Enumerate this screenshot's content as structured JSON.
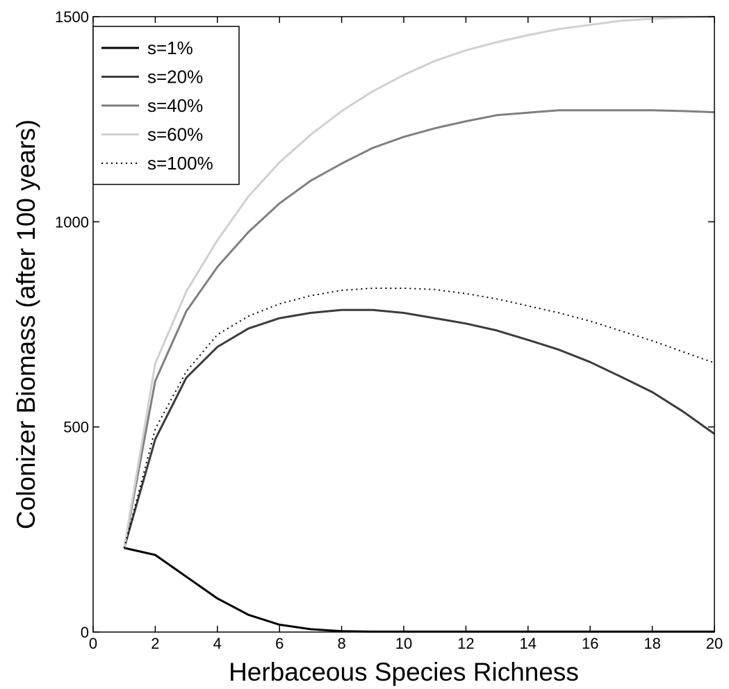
{
  "chart_data": {
    "type": "line",
    "title": "",
    "xlabel": "Herbaceous Species Richness",
    "ylabel": "Colonizer Biomass (after 100 years)",
    "xlim": [
      0,
      20
    ],
    "ylim": [
      0,
      1500
    ],
    "xticks": [
      "0",
      "2",
      "4",
      "6",
      "8",
      "10",
      "12",
      "14",
      "16",
      "18",
      "20"
    ],
    "yticks": [
      "0",
      "500",
      "1000",
      "1500"
    ],
    "grid": false,
    "legend_position": "top-left",
    "x": [
      1,
      2,
      3,
      4,
      5,
      6,
      7,
      8,
      9,
      10,
      11,
      12,
      13,
      14,
      15,
      16,
      17,
      18,
      19,
      20
    ],
    "series": [
      {
        "name": "s=1%",
        "color": "#000000",
        "dash": "solid",
        "values": [
          205,
          188,
          135,
          82,
          42,
          18,
          7,
          2,
          1,
          1,
          1,
          1,
          1,
          1,
          1,
          1,
          1,
          1,
          1,
          1
        ]
      },
      {
        "name": "s=20%",
        "color": "#3c3c3c",
        "dash": "solid",
        "values": [
          205,
          470,
          620,
          695,
          740,
          765,
          778,
          785,
          785,
          778,
          765,
          752,
          735,
          712,
          688,
          658,
          622,
          585,
          537,
          483
        ]
      },
      {
        "name": "s=40%",
        "color": "#7f7f7f",
        "dash": "solid",
        "values": [
          205,
          612,
          782,
          890,
          975,
          1045,
          1100,
          1142,
          1180,
          1207,
          1228,
          1245,
          1260,
          1266,
          1272,
          1272,
          1272,
          1272,
          1270,
          1267
        ]
      },
      {
        "name": "s=60%",
        "color": "#d0d0d0",
        "dash": "solid",
        "values": [
          205,
          655,
          830,
          955,
          1062,
          1145,
          1212,
          1270,
          1318,
          1358,
          1392,
          1418,
          1438,
          1455,
          1470,
          1480,
          1490,
          1495,
          1498,
          1500
        ]
      },
      {
        "name": "s=100%",
        "color": "#000000",
        "dash": "dotted",
        "values": [
          205,
          495,
          635,
          725,
          770,
          800,
          820,
          833,
          838,
          838,
          835,
          825,
          812,
          795,
          778,
          758,
          734,
          710,
          683,
          656
        ]
      }
    ]
  }
}
